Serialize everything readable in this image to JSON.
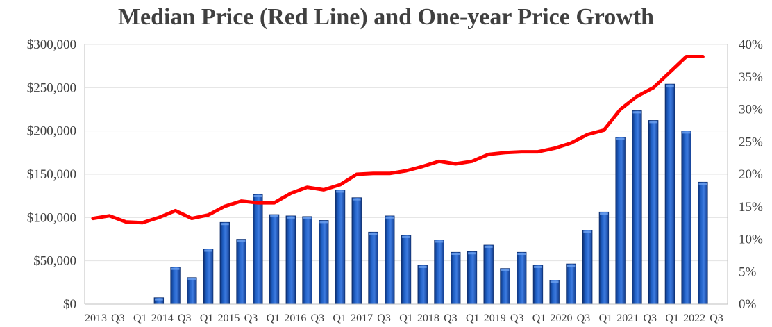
{
  "chart_data": {
    "type": "bar",
    "title": "Median Price (Red Line) and One-year Price Growth",
    "categories": [
      "2013 Q1",
      "2013 Q2",
      "2013 Q3",
      "2013 Q4",
      "2014 Q1",
      "2014 Q2",
      "2014 Q3",
      "2014 Q4",
      "2015 Q1",
      "2015 Q2",
      "2015 Q3",
      "2015 Q4",
      "2016 Q1",
      "2016 Q2",
      "2016 Q3",
      "2016 Q4",
      "2017 Q1",
      "2017 Q2",
      "2017 Q3",
      "2017 Q4",
      "2018 Q1",
      "2018 Q2",
      "2018 Q3",
      "2018 Q4",
      "2019 Q1",
      "2019 Q2",
      "2019 Q3",
      "2019 Q4",
      "2020 Q1",
      "2020 Q2",
      "2020 Q3",
      "2020 Q4",
      "2021 Q1",
      "2021 Q2",
      "2021 Q3",
      "2021 Q4",
      "2022 Q1",
      "2022 Q2",
      "2022 Q3"
    ],
    "x_tick_labels": [
      "2013",
      "Q3",
      "Q1",
      "2014",
      "Q3",
      "Q1",
      "2015",
      "Q3",
      "Q1",
      "2016",
      "Q3",
      "Q1",
      "2017",
      "Q3",
      "Q1",
      "2018",
      "Q3",
      "Q1",
      "2019",
      "Q3",
      "Q1",
      "2020",
      "Q3",
      "Q1",
      "2021",
      "Q3",
      "Q1",
      "2022",
      "Q3"
    ],
    "series": [
      {
        "name": "One-year Price Growth",
        "kind": "bar",
        "axis": "right",
        "color": "#1f5fc4",
        "values": [
          null,
          null,
          null,
          null,
          1.0,
          5.7,
          4.1,
          8.5,
          12.6,
          10.0,
          16.9,
          13.8,
          13.6,
          13.5,
          12.9,
          17.6,
          16.4,
          11.1,
          13.6,
          10.6,
          6.0,
          9.9,
          8.0,
          8.1,
          9.1,
          5.5,
          8.0,
          6.0,
          3.7,
          6.2,
          11.4,
          14.2,
          25.7,
          29.8,
          28.3,
          33.9,
          26.7,
          18.8,
          null
        ]
      },
      {
        "name": "Median Price",
        "kind": "line",
        "axis": "left",
        "color": "#ff0000",
        "values": [
          99000,
          102000,
          95000,
          94000,
          100000,
          108000,
          99000,
          103000,
          113000,
          119000,
          117000,
          117000,
          128000,
          135000,
          132000,
          138000,
          150000,
          151000,
          151000,
          154000,
          159000,
          165000,
          162000,
          165000,
          173000,
          175000,
          176000,
          176000,
          180000,
          186000,
          196000,
          201000,
          225000,
          240000,
          250000,
          268000,
          286000,
          286000,
          null
        ]
      }
    ],
    "y_left": {
      "ticks": [
        "$0",
        "$50,000",
        "$100,000",
        "$150,000",
        "$200,000",
        "$250,000",
        "$300,000"
      ],
      "ylim": [
        0,
        300000
      ]
    },
    "y_right": {
      "ticks": [
        "0%",
        "5%",
        "10%",
        "15%",
        "20%",
        "25%",
        "30%",
        "35%",
        "40%"
      ],
      "ylim": [
        0,
        40
      ]
    },
    "grid": true,
    "legend": "none"
  }
}
